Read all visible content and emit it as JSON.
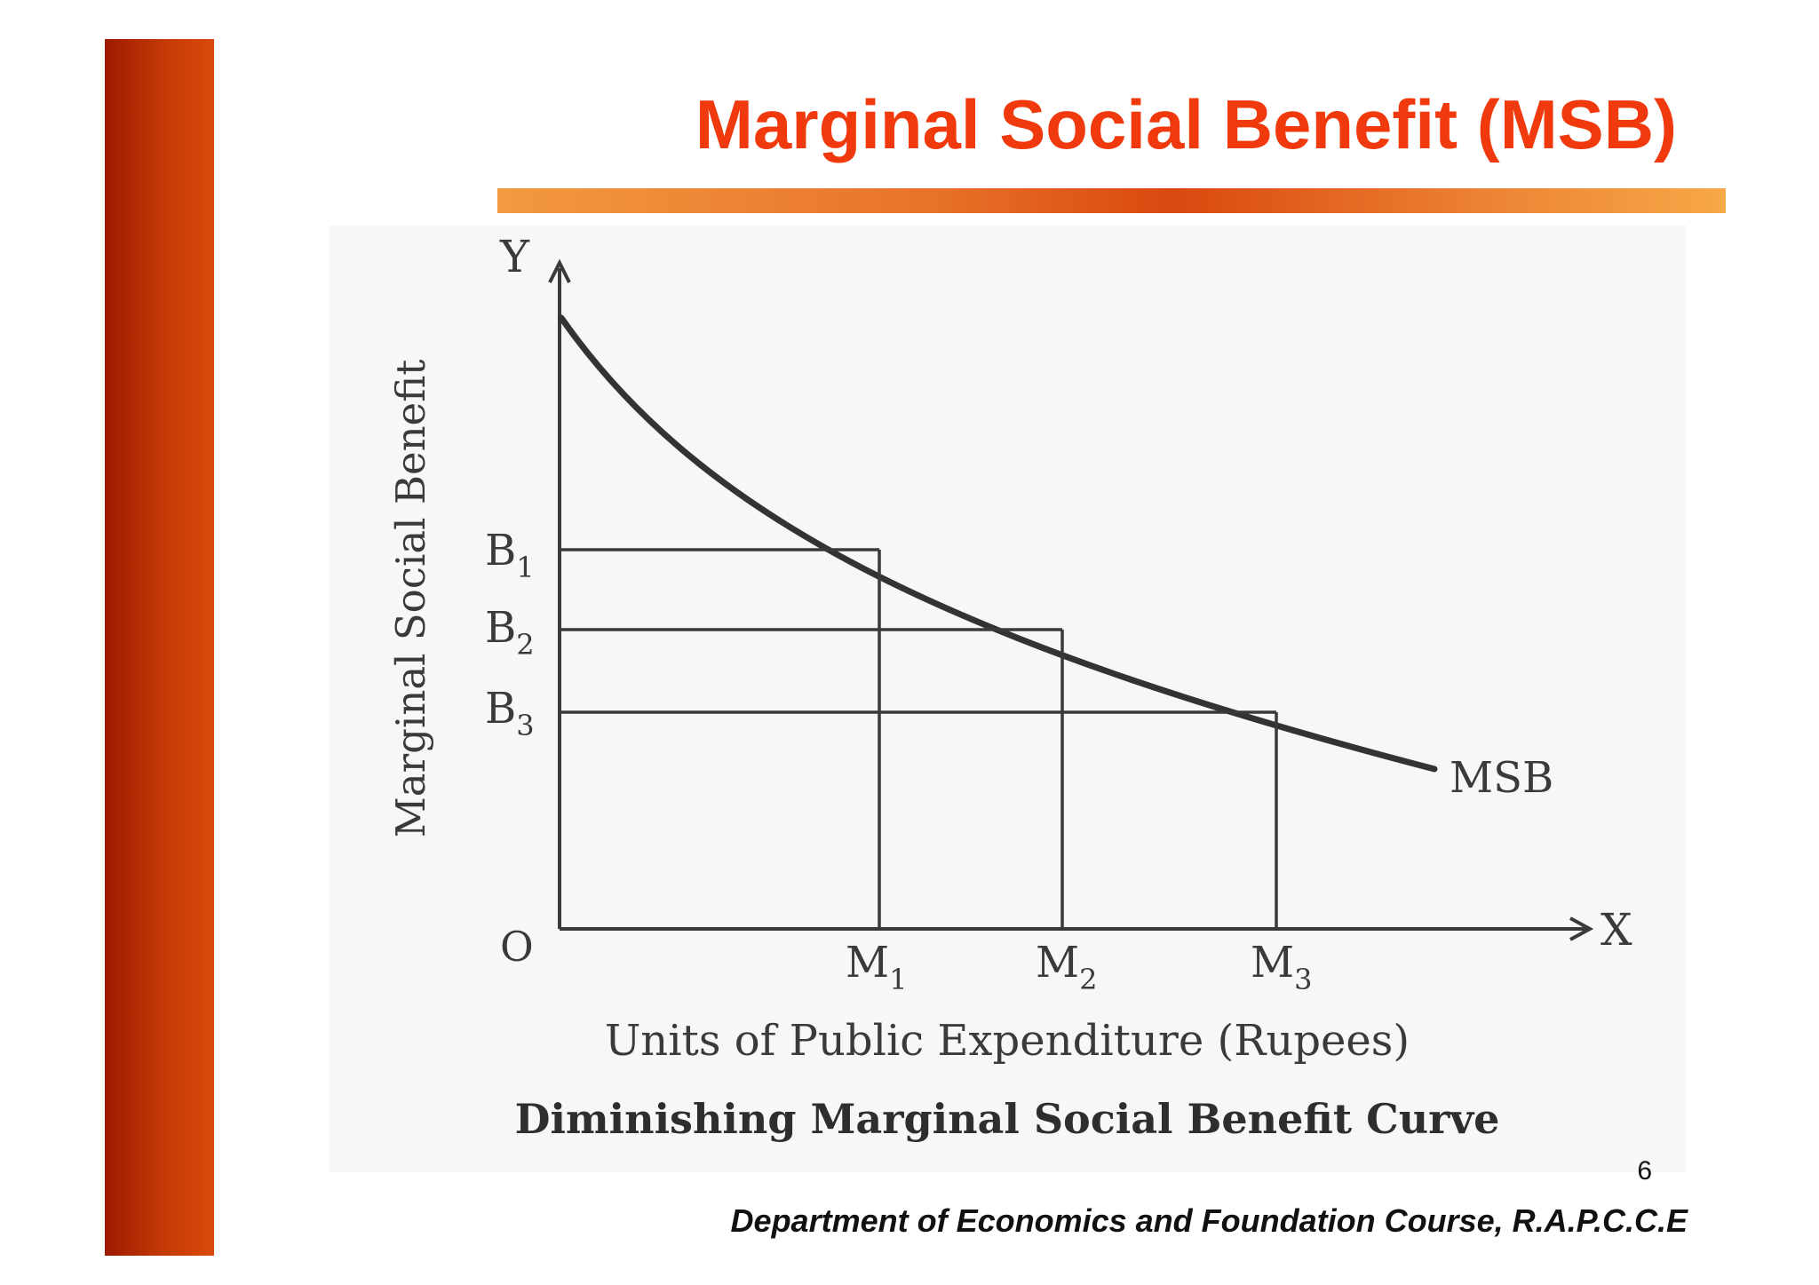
{
  "slide": {
    "title": "Marginal Social Benefit (MSB)",
    "page_number": "6",
    "footer": "Department of Economics and Foundation Course, R.A.P.C.C.E"
  },
  "colors": {
    "title": "#f0390c",
    "sidebar": "#c53a06",
    "rule": "#e8732a",
    "ink": "#3a3a3a"
  },
  "diagram": {
    "y_axis_letter": "Y",
    "x_axis_letter": "X",
    "origin_label": "O",
    "y_axis_title": "Marginal Social Benefit",
    "x_axis_title": "Units of Public Expenditure (Rupees)",
    "caption": "Diminishing Marginal Social Benefit Curve",
    "curve_label": "MSB",
    "benefit_levels": [
      {
        "main": "B",
        "sub": "1"
      },
      {
        "main": "B",
        "sub": "2"
      },
      {
        "main": "B",
        "sub": "3"
      }
    ],
    "expenditure_units": [
      {
        "main": "M",
        "sub": "1"
      },
      {
        "main": "M",
        "sub": "2"
      },
      {
        "main": "M",
        "sub": "3"
      }
    ]
  }
}
